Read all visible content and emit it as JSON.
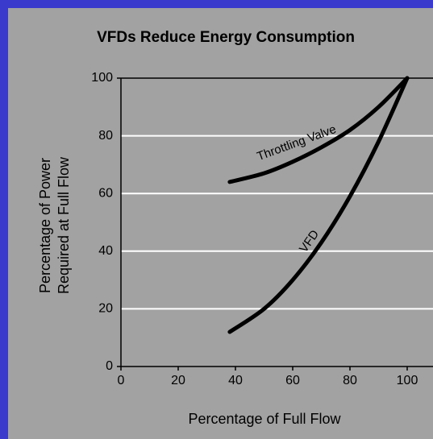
{
  "chart_data": {
    "type": "line",
    "title": "VFDs Reduce Energy Consumption",
    "xlabel": "Percentage of Full Flow",
    "ylabel": [
      "Percentage of Power",
      "Required at Full Flow"
    ],
    "x": [
      38,
      50,
      60,
      70,
      80,
      90,
      100
    ],
    "series": [
      {
        "name": "Throttling Valve",
        "color": "#000000",
        "values": [
          64,
          67,
          71,
          76,
          82,
          90,
          100
        ]
      },
      {
        "name": "VFD",
        "color": "#000000",
        "values": [
          12,
          20,
          30,
          43,
          59,
          78,
          100
        ]
      }
    ],
    "xlim": [
      0,
      100
    ],
    "ylim": [
      0,
      100
    ],
    "xticks": [
      0,
      20,
      40,
      60,
      80,
      100
    ],
    "yticks": [
      0,
      20,
      40,
      60,
      80,
      100
    ],
    "grid": true,
    "grid_color": "#ffffff"
  }
}
